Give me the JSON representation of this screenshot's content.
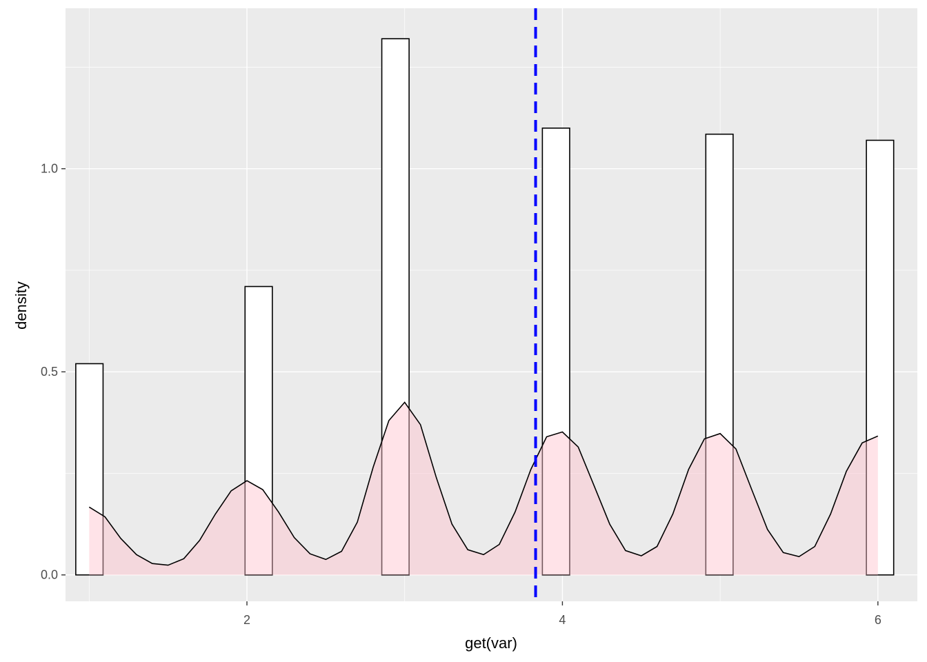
{
  "chart_data": {
    "type": "bar",
    "xlabel": "get(var)",
    "ylabel": "density",
    "xlim": [
      0.85,
      6.25
    ],
    "ylim": [
      -0.065,
      1.395
    ],
    "x_ticks": [
      2,
      4,
      6
    ],
    "y_ticks": [
      0.0,
      0.5,
      1.0
    ],
    "x_tick_labels": [
      "2",
      "4",
      "6"
    ],
    "y_tick_labels": [
      "0.0",
      "0.5",
      "1.0"
    ],
    "grid": true,
    "panel_background": "#EBEBEB",
    "histogram": {
      "fill": "#FFFFFF",
      "outline": "#000000",
      "bins": [
        {
          "xmin": 0.915,
          "xmax": 1.088,
          "density": 0.52
        },
        {
          "xmin": 1.988,
          "xmax": 2.161,
          "density": 0.71
        },
        {
          "xmin": 2.855,
          "xmax": 3.028,
          "density": 1.32
        },
        {
          "xmin": 3.873,
          "xmax": 4.046,
          "density": 1.1
        },
        {
          "xmin": 4.909,
          "xmax": 5.082,
          "density": 1.085
        },
        {
          "xmin": 5.927,
          "xmax": 6.1,
          "density": 1.07
        }
      ]
    },
    "density_curve": {
      "fill": "#FFC0CB",
      "fill_opacity": 0.45,
      "outline": "#000000",
      "x": [
        1.0,
        1.1,
        1.2,
        1.3,
        1.4,
        1.5,
        1.6,
        1.7,
        1.8,
        1.9,
        2.0,
        2.1,
        2.2,
        2.3,
        2.4,
        2.5,
        2.6,
        2.7,
        2.8,
        2.9,
        3.0,
        3.1,
        3.2,
        3.3,
        3.4,
        3.5,
        3.6,
        3.7,
        3.8,
        3.9,
        4.0,
        4.1,
        4.2,
        4.3,
        4.4,
        4.5,
        4.6,
        4.7,
        4.8,
        4.9,
        5.0,
        5.1,
        5.2,
        5.3,
        5.4,
        5.5,
        5.6,
        5.7,
        5.8,
        5.9,
        6.0
      ],
      "y": [
        0.167,
        0.143,
        0.09,
        0.05,
        0.028,
        0.024,
        0.04,
        0.085,
        0.15,
        0.207,
        0.232,
        0.21,
        0.155,
        0.092,
        0.052,
        0.038,
        0.058,
        0.13,
        0.265,
        0.38,
        0.425,
        0.37,
        0.24,
        0.125,
        0.062,
        0.05,
        0.075,
        0.155,
        0.26,
        0.34,
        0.352,
        0.315,
        0.22,
        0.125,
        0.06,
        0.047,
        0.07,
        0.15,
        0.26,
        0.335,
        0.348,
        0.31,
        0.21,
        0.112,
        0.055,
        0.045,
        0.07,
        0.15,
        0.255,
        0.325,
        0.342
      ]
    },
    "reference_line": {
      "x": 3.83,
      "color": "#0000FF",
      "style": "dashed"
    }
  }
}
